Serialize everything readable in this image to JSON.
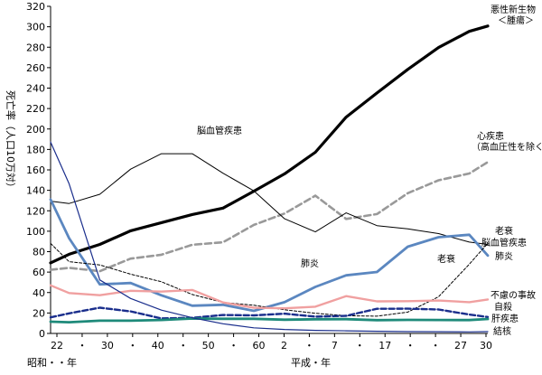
{
  "chart_data": {
    "type": "line",
    "ylabel": "死亡率（人口10万対）",
    "ylim": [
      0,
      320
    ],
    "y_ticks": [
      "0",
      "20",
      "40",
      "60",
      "80",
      "100",
      "120",
      "140",
      "160",
      "180",
      "200",
      "220",
      "240",
      "260",
      "280",
      "300",
      "320"
    ],
    "x_tick_labels": [
      "22",
      "・",
      "30",
      "・",
      "40",
      "・",
      "50",
      "・",
      "60",
      "2",
      "・",
      "7",
      "・",
      "17",
      "・",
      "・",
      "27",
      "30"
    ],
    "x_era_showa": "昭和・・年",
    "x_era_heisei": "平成・年",
    "x_years": [
      1947,
      1950,
      1955,
      1960,
      1965,
      1970,
      1975,
      1980,
      1985,
      1990,
      1995,
      2000,
      2005,
      2010,
      2015,
      2018
    ],
    "grid": false,
    "legend": "inline labels",
    "series": [
      {
        "name": "悪性新生物\n＜腫瘍＞",
        "color": "#000000",
        "style": "bold",
        "values": [
          69.0,
          77.4,
          87.1,
          100.4,
          108.4,
          116.3,
          122.6,
          139.1,
          156.1,
          177.2,
          211.6,
          235.2,
          258.3,
          279.7,
          295.5,
          300.7
        ]
      },
      {
        "name": "心疾患\n（高血圧性を除く）",
        "color": "#999999",
        "style": "dashed-gray",
        "values": [
          62.2,
          64.2,
          60.9,
          73.2,
          77.0,
          86.7,
          89.2,
          106.2,
          117.3,
          134.8,
          112.0,
          116.8,
          137.2,
          149.8,
          156.5,
          167.6
        ]
      },
      {
        "name": "脳血管疾患",
        "color": "#000000",
        "style": "thin",
        "values": [
          129.4,
          127.1,
          136.1,
          160.7,
          175.8,
          175.8,
          156.7,
          139.5,
          112.2,
          99.4,
          117.9,
          105.5,
          102.3,
          97.7,
          89.4,
          87.1
        ]
      },
      {
        "name": "肺炎",
        "color": "#5b87c0",
        "style": "blue",
        "values": [
          131.0,
          93.2,
          48.0,
          49.3,
          37.3,
          27.1,
          28.0,
          22.1,
          30.6,
          45.5,
          56.8,
          60.1,
          84.9,
          94.1,
          96.5,
          76.2
        ]
      },
      {
        "name": "老衰",
        "color": "#000000",
        "style": "thin-dashed",
        "values": [
          88.0,
          70.2,
          67.0,
          58.0,
          50.6,
          38.1,
          30.3,
          27.6,
          23.2,
          19.7,
          17.3,
          16.9,
          20.9,
          35.9,
          67.7,
          88.2
        ]
      },
      {
        "name": "不慮の事故",
        "color": "#f0a0a0",
        "style": "pink",
        "values": [
          47.0,
          39.5,
          37.4,
          41.7,
          40.9,
          42.5,
          30.3,
          25.1,
          24.6,
          26.2,
          36.5,
          31.4,
          31.6,
          32.2,
          30.6,
          33.2
        ]
      },
      {
        "name": "自殺",
        "color": "#1a2e8c",
        "style": "navy-dashed",
        "values": [
          15.7,
          19.6,
          25.2,
          21.6,
          14.7,
          15.3,
          18.0,
          17.7,
          19.4,
          16.4,
          17.2,
          24.1,
          24.2,
          23.4,
          18.5,
          16.1
        ]
      },
      {
        "name": "肝疾患",
        "color": "#1e8a7a",
        "style": "teal",
        "values": [
          11.5,
          11.0,
          12.5,
          12.5,
          13.2,
          14.6,
          14.3,
          14.3,
          13.4,
          13.9,
          14.0,
          13.0,
          13.3,
          13.2,
          13.1,
          14.1
        ]
      },
      {
        "name": "結核",
        "color": "#1a2e8c",
        "style": "navy-thin",
        "values": [
          187.2,
          146.4,
          52.3,
          34.2,
          22.8,
          15.4,
          9.5,
          5.5,
          3.9,
          3.0,
          2.6,
          2.1,
          1.8,
          1.7,
          1.5,
          1.8
        ]
      }
    ]
  }
}
